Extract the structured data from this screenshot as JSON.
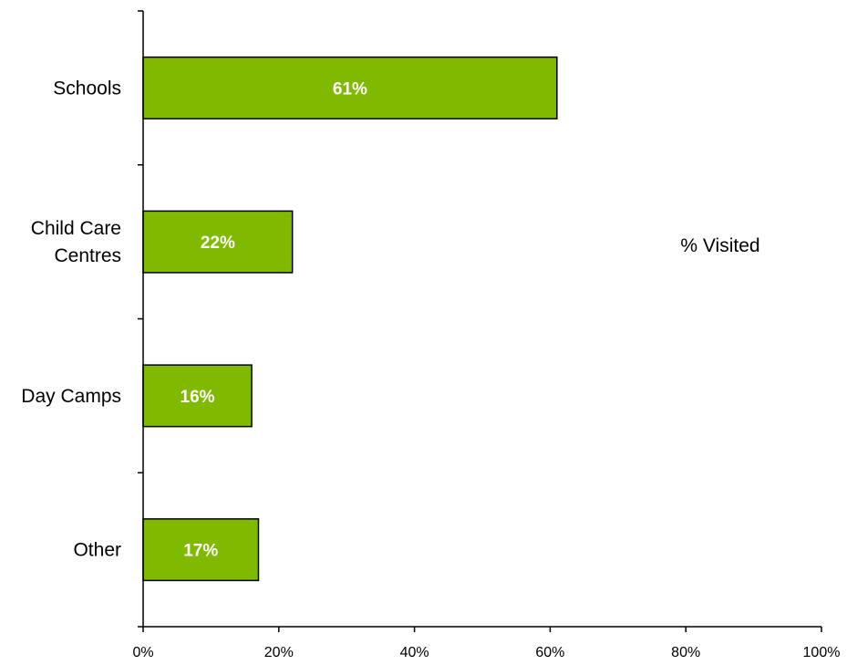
{
  "chart_data": {
    "type": "bar",
    "orientation": "horizontal",
    "categories": [
      [
        "Schools"
      ],
      [
        "Child Care",
        "Centres"
      ],
      [
        "Day Camps"
      ],
      [
        "Other"
      ]
    ],
    "series": [
      {
        "name": "% Visited",
        "values": [
          61,
          22,
          16,
          17
        ],
        "data_labels": [
          "61%",
          "22%",
          "16%",
          "17%"
        ],
        "color": "#7fba00"
      }
    ],
    "xlim": [
      0,
      100
    ],
    "x_ticks": [
      0,
      20,
      40,
      60,
      80,
      100
    ],
    "x_tick_labels": [
      "0%",
      "20%",
      "40%",
      "60%",
      "80%",
      "100%"
    ],
    "grid": false,
    "legend": {
      "position": "right",
      "label": "% Visited"
    },
    "bar_border_color": "#000000"
  }
}
